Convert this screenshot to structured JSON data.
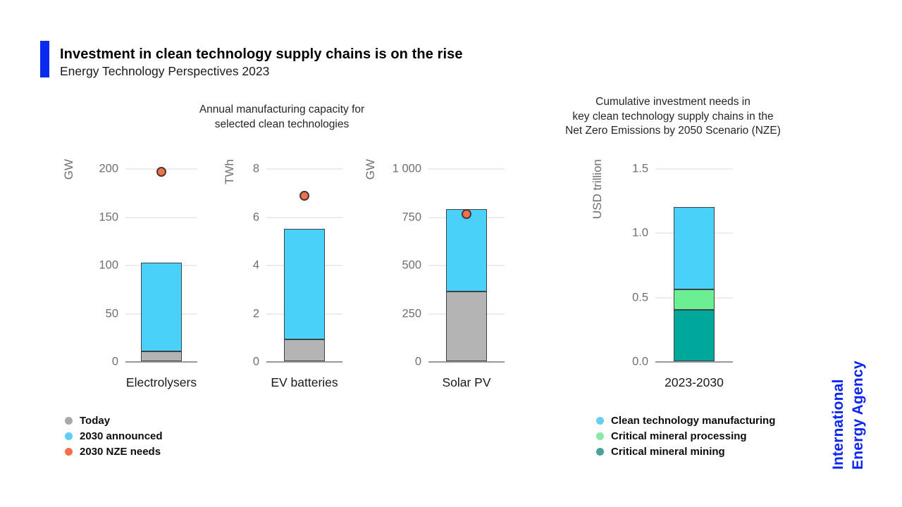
{
  "header": {
    "title": "Investment in clean technology supply chains is on the rise",
    "subtitle": "Energy Technology Perspectives 2023"
  },
  "panels": {
    "left": {
      "title_lines": [
        "Annual manufacturing capacity for",
        "selected clean technologies"
      ]
    },
    "right": {
      "title_lines": [
        "Cumulative investment needs in",
        "key clean technology supply chains in the",
        "Net Zero Emissions by 2050 Scenario (NZE)"
      ]
    }
  },
  "chart_data": [
    {
      "type": "bar",
      "title": "Annual manufacturing capacity for selected clean technologies",
      "ylabel": "GW",
      "categories": [
        "Electrolysers"
      ],
      "ylim": [
        0,
        200
      ],
      "grid": true,
      "yticks": [
        {
          "label": "0",
          "value": 0
        },
        {
          "label": "50",
          "value": 50
        },
        {
          "label": "100",
          "value": 100
        },
        {
          "label": "150",
          "value": 150
        },
        {
          "label": "200",
          "value": 200
        }
      ],
      "series": [
        {
          "name": "Today",
          "values": [
            10
          ],
          "color": "#b4b4b4"
        },
        {
          "name": "2030 announced",
          "values": [
            92
          ],
          "color": "#49d1fa"
        }
      ],
      "stack_top": 102,
      "dot": {
        "name": "2030 NZE needs",
        "values": [
          197
        ],
        "color": "#f3704b"
      }
    },
    {
      "type": "bar",
      "ylabel": "TWh",
      "categories": [
        "EV batteries"
      ],
      "ylim": [
        0,
        8
      ],
      "grid": true,
      "yticks": [
        {
          "label": "0",
          "value": 0
        },
        {
          "label": "2",
          "value": 2
        },
        {
          "label": "4",
          "value": 4
        },
        {
          "label": "6",
          "value": 6
        },
        {
          "label": "8",
          "value": 8
        }
      ],
      "series": [
        {
          "name": "Today",
          "values": [
            0.9
          ],
          "color": "#b4b4b4"
        },
        {
          "name": "2030 announced",
          "values": [
            4.6
          ],
          "color": "#49d1fa"
        }
      ],
      "stack_top": 5.5,
      "dot": {
        "name": "2030 NZE needs",
        "values": [
          6.9
        ],
        "color": "#f3704b"
      }
    },
    {
      "type": "bar",
      "ylabel": "GW",
      "categories": [
        "Solar PV"
      ],
      "ylim": [
        0,
        1000
      ],
      "grid": true,
      "yticks": [
        {
          "label": "0",
          "value": 0
        },
        {
          "label": "250",
          "value": 250
        },
        {
          "label": "500",
          "value": 500
        },
        {
          "label": "750",
          "value": 750
        },
        {
          "label": "1 000",
          "value": 1000
        }
      ],
      "series": [
        {
          "name": "Today",
          "values": [
            360
          ],
          "color": "#b4b4b4"
        },
        {
          "name": "2030 announced",
          "values": [
            430
          ],
          "color": "#49d1fa"
        }
      ],
      "stack_top": 790,
      "dot": {
        "name": "2030 NZE needs",
        "values": [
          765
        ],
        "color": "#f3704b"
      }
    },
    {
      "type": "bar",
      "title": "Cumulative investment needs in key clean technology supply chains in the Net Zero Emissions by 2050 Scenario (NZE)",
      "ylabel": "USD trillion",
      "categories": [
        "2023-2030"
      ],
      "ylim": [
        0,
        1.5
      ],
      "grid": true,
      "yticks": [
        {
          "label": "0.0",
          "value": 0
        },
        {
          "label": "0.5",
          "value": 0.5
        },
        {
          "label": "1.0",
          "value": 1.0
        },
        {
          "label": "1.5",
          "value": 1.5
        }
      ],
      "series": [
        {
          "name": "Critical mineral mining",
          "values": [
            0.4
          ],
          "color": "#00a89c"
        },
        {
          "name": "Critical mineral processing",
          "values": [
            0.16
          ],
          "color": "#6cee92"
        },
        {
          "name": "Clean technology manufacturing",
          "values": [
            0.64
          ],
          "color": "#49d1fa"
        }
      ],
      "stack_top": 1.2
    }
  ],
  "legends": {
    "left": [
      {
        "label": "Today",
        "color": "#a9a9a9"
      },
      {
        "label": "2030 announced",
        "color": "#5fcdf5"
      },
      {
        "label": "2030 NZE needs",
        "color": "#f3704b"
      }
    ],
    "right": [
      {
        "label": "Clean technology manufacturing",
        "color": "#6accf3"
      },
      {
        "label": "Critical mineral processing",
        "color": "#8de8a7"
      },
      {
        "label": "Critical mineral mining",
        "color": "#4aa09b"
      }
    ]
  },
  "logo": {
    "lines": [
      "International",
      "Energy Agency"
    ]
  },
  "colors": {
    "accent": "#0b2af1",
    "logo-blue": "#0c26f2",
    "gridline": "#d8d8d8",
    "axis": "#999999",
    "tick-text": "#6f6f6f"
  }
}
